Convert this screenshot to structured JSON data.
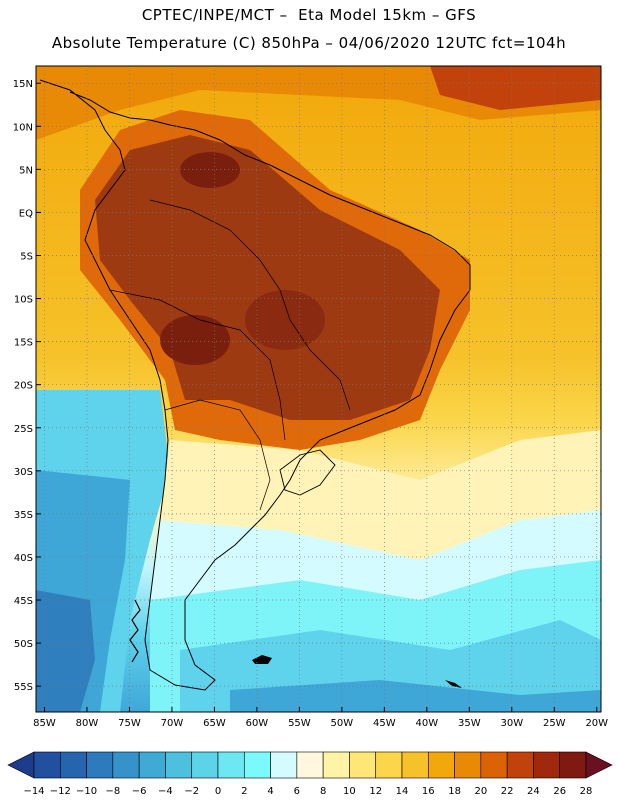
{
  "title_line1": "CPTEC/INPE/MCT –  Eta Model 15km – GFS",
  "title_line2": "Absolute Temperature (C) 850hPa – 04/06/2020 12UTC fct=104h",
  "map": {
    "lat_labels": [
      "15N",
      "10N",
      "5N",
      "EQ",
      "5S",
      "10S",
      "15S",
      "20S",
      "25S",
      "30S",
      "35S",
      "40S",
      "45S",
      "50S",
      "55S"
    ],
    "lon_labels": [
      "85W",
      "80W",
      "75W",
      "70W",
      "65W",
      "60W",
      "55W",
      "50W",
      "45W",
      "40W",
      "35W",
      "30W",
      "25W",
      "20W"
    ],
    "grid": "dotted",
    "background_zones": {
      "n_warm": "#f2a80a",
      "hot_core": "#9e3a12",
      "very_hot": "#7a1e0e",
      "orange": "#e06a0a",
      "yellow": "#fbd64a",
      "pale_yellow": "#fff3b8",
      "cyan": "#7ef3f8",
      "light_blue": "#5fd3ec",
      "mid_blue": "#3fa7d8",
      "deep_blue": "#2f7fbf"
    }
  },
  "colorbar": {
    "labels": [
      "-14",
      "-12",
      "-10",
      "-8",
      "-6",
      "-4",
      "-2",
      "0",
      "2",
      "4",
      "6",
      "8",
      "10",
      "12",
      "14",
      "16",
      "18",
      "20",
      "22",
      "24",
      "26",
      "28"
    ],
    "colors": [
      "#1d3c8c",
      "#21509e",
      "#2664ad",
      "#2d7bbd",
      "#3693c9",
      "#3faad3",
      "#4cc0dc",
      "#5cd4e8",
      "#6de8f2",
      "#7bfafc",
      "#d4fbff",
      "#fff8de",
      "#fff3a6",
      "#fee677",
      "#fbd64a",
      "#f6c22a",
      "#f2a80a",
      "#e88a06",
      "#db6205",
      "#c2420b",
      "#a0280c",
      "#7e1a10",
      "#6b0f22"
    ]
  }
}
